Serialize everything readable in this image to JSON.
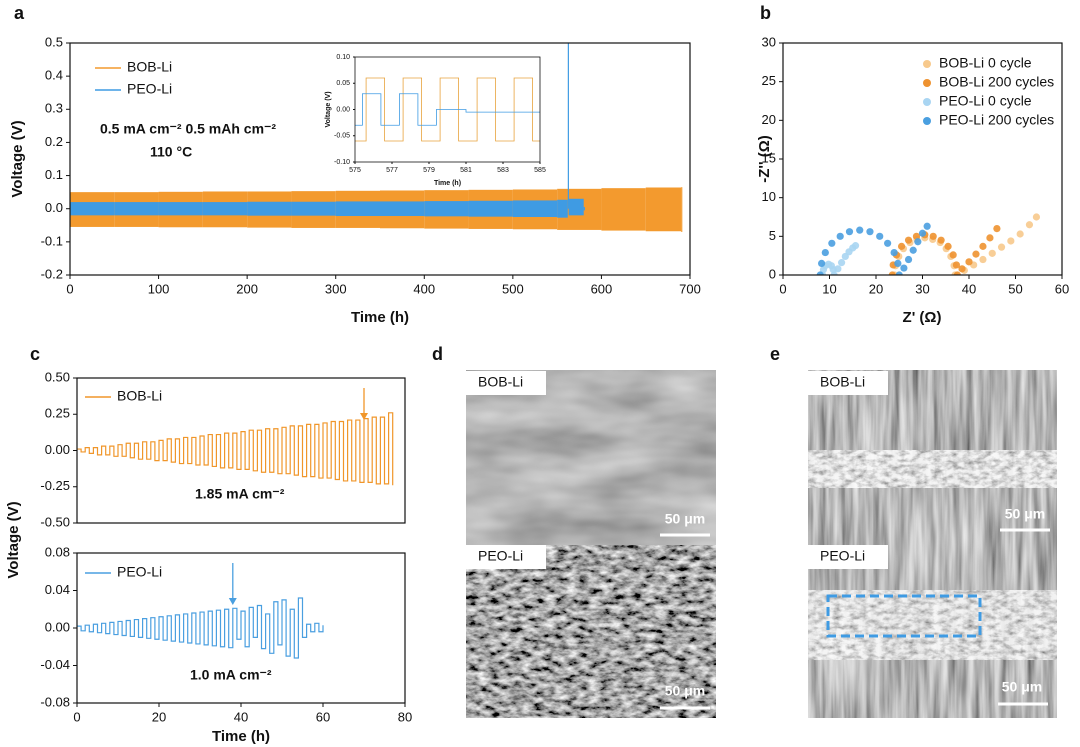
{
  "chart_data": [
    {
      "type": "line",
      "panel": "a",
      "x_label": "Time (h)",
      "y_label": "Voltage (V)",
      "xlim": [
        0,
        700
      ],
      "xticks": [
        0,
        100,
        200,
        300,
        400,
        500,
        600,
        700
      ],
      "ylim": [
        -0.2,
        0.5
      ],
      "yticks": [
        -0.2,
        -0.1,
        {
          "value": 0,
          "label": "0.0"
        },
        0.1,
        0.2,
        0.3,
        0.4,
        0.5
      ],
      "annotations": [
        "0.5 mA cm⁻²  0.5 mAh cm⁻²",
        "110 °C"
      ],
      "series": [
        {
          "name": "BOB-Li",
          "color": "#f39a2e",
          "x": [
            0,
            50,
            100,
            150,
            200,
            250,
            300,
            350,
            400,
            450,
            500,
            550,
            600,
            650,
            690
          ],
          "values": [
            0.05,
            0.05,
            0.051,
            0.052,
            0.052,
            0.053,
            0.054,
            0.055,
            0.056,
            0.057,
            0.058,
            0.06,
            0.062,
            0.064,
            0.065
          ],
          "low": [
            -0.055,
            -0.055,
            -0.056,
            -0.056,
            -0.057,
            -0.058,
            -0.058,
            -0.059,
            -0.06,
            -0.061,
            -0.062,
            -0.064,
            -0.066,
            -0.068,
            -0.07
          ]
        },
        {
          "name": "PEO-Li",
          "color": "#3f9be3",
          "x": [
            0,
            50,
            100,
            150,
            200,
            250,
            300,
            350,
            400,
            450,
            500,
            550,
            562,
            563,
            580
          ],
          "values": [
            0.02,
            0.02,
            0.02,
            0.02,
            0.021,
            0.021,
            0.022,
            0.022,
            0.023,
            0.024,
            0.025,
            0.027,
            0.5,
            0.03,
            0.005
          ],
          "low": [
            -0.02,
            -0.02,
            -0.02,
            -0.02,
            -0.021,
            -0.021,
            -0.022,
            -0.022,
            -0.023,
            -0.024,
            -0.025,
            -0.027,
            0,
            -0.02,
            -0.005
          ]
        }
      ],
      "inset": {
        "x_label": "Time (h)",
        "y_label": "Voltage (V)",
        "xlim": [
          575,
          585
        ],
        "xticks": [
          575,
          577,
          579,
          581,
          583,
          585
        ],
        "ylim": [
          -0.1,
          0.1
        ],
        "yticks": [
          {
            "value": -0.1,
            "label": "-0.10"
          },
          -0.05,
          {
            "value": 0,
            "label": "0.00"
          },
          0.05,
          {
            "value": 0.1,
            "label": "0.10"
          }
        ],
        "series": [
          {
            "color": "#e8a33d",
            "x": [
              575,
              575.6,
              575.6,
              576.6,
              576.6,
              577.6,
              577.6,
              578.6,
              578.6,
              579.6,
              579.6,
              580.6,
              580.6,
              581.6,
              581.6,
              582.6,
              582.6,
              583.6,
              583.6,
              584.6,
              584.6,
              585
            ],
            "values": [
              -0.06,
              -0.06,
              0.06,
              0.06,
              -0.06,
              -0.06,
              0.06,
              0.06,
              -0.06,
              -0.06,
              0.06,
              0.06,
              -0.06,
              -0.06,
              0.06,
              0.06,
              -0.06,
              -0.06,
              0.06,
              0.06,
              -0.06,
              -0.06
            ]
          },
          {
            "color": "#3f9be3",
            "x": [
              575,
              575.4,
              575.4,
              576.4,
              576.4,
              577.4,
              577.4,
              578.4,
              578.4,
              579.4,
              579.4,
              581,
              581,
              585
            ],
            "values": [
              -0.03,
              -0.03,
              0.03,
              0.03,
              -0.03,
              -0.03,
              0.03,
              0.03,
              -0.03,
              -0.03,
              0,
              0,
              -0.005,
              -0.005
            ]
          }
        ]
      }
    },
    {
      "type": "scatter",
      "panel": "b",
      "x_label": "Z' (Ω)",
      "y_label": "-Z'' (Ω)",
      "xlim": [
        0,
        60
      ],
      "xticks": [
        0,
        10,
        20,
        30,
        40,
        50,
        60
      ],
      "ylim": [
        0,
        30
      ],
      "yticks": [
        0,
        5,
        10,
        15,
        20,
        25,
        30
      ],
      "series": [
        {
          "name": "BOB-Li 0 cycle",
          "color": "#f7c98c",
          "x": [
            24,
            24.2,
            24.9,
            25.9,
            27.3,
            28.8,
            30.5,
            32.2,
            33.8,
            35.1,
            36.1,
            36.8,
            37,
            39,
            41,
            43,
            45,
            47,
            49,
            51,
            53,
            54.5
          ],
          "values": [
            0,
            1.2,
            2.4,
            3.4,
            4.2,
            4.6,
            4.8,
            4.6,
            4.2,
            3.4,
            2.4,
            1.2,
            0,
            0.6,
            1.3,
            2,
            2.8,
            3.6,
            4.4,
            5.3,
            6.5,
            7.5
          ]
        },
        {
          "name": "BOB-Li 200 cycles",
          "color": "#ee9230",
          "x": [
            23.5,
            23.7,
            24.4,
            25.5,
            27,
            28.7,
            30.5,
            32.3,
            34,
            35.5,
            36.6,
            37.3,
            37.5,
            38.5,
            40,
            41.5,
            43,
            44.5,
            46
          ],
          "values": [
            0,
            1.3,
            2.6,
            3.7,
            4.5,
            5,
            5.2,
            5,
            4.5,
            3.7,
            2.6,
            1.3,
            0,
            0.8,
            1.7,
            2.7,
            3.7,
            4.8,
            6
          ]
        },
        {
          "name": "PEO-Li 0 cycle",
          "color": "#a9d5f2",
          "x": [
            8.5,
            8.7,
            9.1,
            9.8,
            10.4,
            10.8,
            11,
            11.8,
            12.6,
            13.4,
            14.2,
            15,
            15.6
          ],
          "values": [
            0,
            0.7,
            1.2,
            1.4,
            1.2,
            0.7,
            0,
            0.8,
            1.6,
            2.4,
            3,
            3.5,
            3.8
          ]
        },
        {
          "name": "PEO-Li 200 cycles",
          "color": "#4a9fe0",
          "x": [
            8,
            8.3,
            9.1,
            10.5,
            12.3,
            14.3,
            16.5,
            18.7,
            20.8,
            22.5,
            23.9,
            24.7,
            25,
            26,
            27,
            28,
            29,
            30,
            31
          ],
          "values": [
            0,
            1.5,
            2.9,
            4.1,
            5,
            5.6,
            5.8,
            5.6,
            5,
            4.1,
            2.9,
            1.5,
            0,
            0.9,
            2,
            3.2,
            4.3,
            5.4,
            6.3
          ]
        }
      ]
    },
    {
      "type": "line",
      "panel": "c",
      "y_label": "Voltage (V)",
      "step": true,
      "xlim": [
        0,
        80
      ],
      "ylim": [
        -0.5,
        0.5
      ],
      "yticks": [
        {
          "value": -0.5,
          "label": "-0.50"
        },
        -0.25,
        {
          "value": 0,
          "label": "0.00"
        },
        0.25,
        {
          "value": 0.5,
          "label": "0.50"
        }
      ],
      "annotations": [
        "1.85 mA cm⁻²"
      ],
      "arrow_x": 70,
      "series": [
        {
          "name": "BOB-Li",
          "color": "#f0962a",
          "x": [
            0,
            1,
            2,
            3,
            4,
            5,
            6,
            7,
            8,
            9,
            10,
            11,
            12,
            13,
            14,
            15,
            16,
            17,
            18,
            19,
            20,
            21,
            22,
            23,
            24,
            25,
            26,
            27,
            28,
            29,
            30,
            31,
            32,
            33,
            34,
            35,
            36,
            37,
            38,
            39,
            40,
            41,
            42,
            43,
            44,
            45,
            46,
            47,
            48,
            49,
            50,
            51,
            52,
            53,
            54,
            55,
            56,
            57,
            58,
            59,
            60,
            61,
            62,
            63,
            64,
            65,
            66,
            67,
            68,
            69,
            70,
            71,
            72,
            73,
            74,
            75,
            76,
            77
          ],
          "values": [
            0.01,
            -0.01,
            0.02,
            -0.02,
            0.02,
            -0.03,
            0.03,
            -0.03,
            0.03,
            -0.04,
            0.04,
            -0.04,
            0.05,
            -0.05,
            0.05,
            -0.06,
            0.06,
            -0.06,
            0.06,
            -0.07,
            0.07,
            -0.07,
            0.08,
            -0.08,
            0.08,
            -0.09,
            0.09,
            -0.09,
            0.09,
            -0.1,
            0.1,
            -0.1,
            0.11,
            -0.11,
            0.11,
            -0.12,
            0.12,
            -0.12,
            0.12,
            -0.13,
            0.13,
            -0.13,
            0.14,
            -0.14,
            0.14,
            -0.15,
            0.15,
            -0.15,
            0.15,
            -0.16,
            0.16,
            -0.16,
            0.17,
            -0.17,
            0.17,
            -0.18,
            0.18,
            -0.18,
            0.18,
            -0.19,
            0.19,
            -0.19,
            0.2,
            -0.2,
            0.2,
            -0.21,
            0.21,
            -0.21,
            0.21,
            -0.22,
            0.22,
            -0.22,
            0.23,
            -0.23,
            0.23,
            -0.23,
            0.26,
            -0.24
          ]
        }
      ]
    },
    {
      "type": "line",
      "panel": "",
      "x_label": "Time (h)",
      "step": true,
      "xlim": [
        0,
        80
      ],
      "xticks": [
        0,
        20,
        40,
        60,
        80
      ],
      "ylim": [
        -0.08,
        0.08
      ],
      "yticks": [
        -0.08,
        -0.04,
        {
          "value": 0,
          "label": "0.00"
        },
        0.04,
        0.08
      ],
      "annotations": [
        "1.0 mA cm⁻²"
      ],
      "arrow_x": 38,
      "series": [
        {
          "name": "PEO-Li",
          "color": "#4a9fe0",
          "x": [
            0,
            1,
            2,
            3,
            4,
            5,
            6,
            7,
            8,
            9,
            10,
            11,
            12,
            13,
            14,
            15,
            16,
            17,
            18,
            19,
            20,
            21,
            22,
            23,
            24,
            25,
            26,
            27,
            28,
            29,
            30,
            31,
            32,
            33,
            34,
            35,
            36,
            37,
            38,
            39,
            40,
            41,
            42,
            43,
            44,
            45,
            46,
            47,
            48,
            49,
            50,
            51,
            52,
            53,
            54,
            55,
            56,
            57,
            58,
            59,
            60
          ],
          "values": [
            0.002,
            -0.003,
            0.003,
            -0.004,
            0.004,
            -0.005,
            0.005,
            -0.006,
            0.006,
            -0.007,
            0.007,
            -0.008,
            0.008,
            -0.009,
            0.009,
            -0.01,
            0.01,
            -0.011,
            0.011,
            -0.012,
            0.012,
            -0.013,
            0.013,
            -0.014,
            0.014,
            -0.015,
            0.015,
            -0.016,
            0.016,
            -0.017,
            0.017,
            -0.018,
            0.018,
            -0.019,
            0.019,
            -0.02,
            0.02,
            -0.021,
            0.021,
            -0.012,
            0.018,
            -0.02,
            0.022,
            -0.01,
            0.024,
            -0.022,
            0.015,
            -0.027,
            0.028,
            -0.018,
            0.03,
            -0.03,
            0.02,
            -0.032,
            0.032,
            -0.01,
            0.004,
            -0.004,
            0.005,
            -0.004,
            0.003
          ]
        }
      ]
    }
  ],
  "images": [
    {
      "panel": "d",
      "top_label": "BOB-Li",
      "bottom_label": "PEO-Li",
      "scale_bars": [
        "50 μm",
        "50 μm"
      ]
    },
    {
      "panel": "e",
      "top_label": "BOB-Li",
      "bottom_label": "PEO-Li",
      "scale_bars": [
        "50 μm",
        "50 μm"
      ]
    }
  ]
}
